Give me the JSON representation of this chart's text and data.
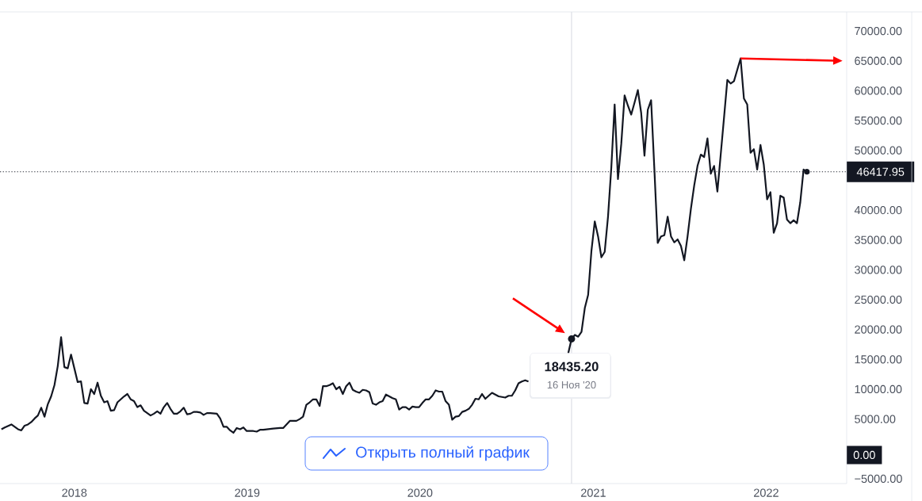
{
  "chart_data": {
    "type": "line",
    "color": "#131722",
    "xlim": [
      "2017-07-28",
      "2022-06-20"
    ],
    "xticks": [
      "2018",
      "2019",
      "2020",
      "2021",
      "2022"
    ],
    "ylim": [
      -5800,
      73200
    ],
    "yticks": [
      {
        "value": -5000,
        "label": "−5000.00"
      },
      {
        "value": 5000,
        "label": "5000.00"
      },
      {
        "value": 10000,
        "label": "10000.00"
      },
      {
        "value": 15000,
        "label": "15000.00"
      },
      {
        "value": 20000,
        "label": "20000.00"
      },
      {
        "value": 25000,
        "label": "25000.00"
      },
      {
        "value": 30000,
        "label": "30000.00"
      },
      {
        "value": 35000,
        "label": "35000.00"
      },
      {
        "value": 40000,
        "label": "40000.00"
      },
      {
        "value": 50000,
        "label": "50000.00"
      },
      {
        "value": 55000,
        "label": "55000.00"
      },
      {
        "value": 60000,
        "label": "60000.00"
      },
      {
        "value": 65000,
        "label": "65000.00"
      },
      {
        "value": 70000,
        "label": "70000.00"
      }
    ],
    "ref_lines": [
      {
        "axis": "x",
        "value": "2020-11-16",
        "label": "16 Ноя '20",
        "color": "#d1d4dc"
      },
      {
        "axis": "y",
        "value": 46417.95,
        "label": "46417.95",
        "color": "#131722",
        "line_style": "dotted"
      }
    ],
    "annotations": [
      {
        "text": "18435.20",
        "x": "2020-11-16",
        "y": 18435.2
      },
      "0.00",
      "Открыть полный график"
    ],
    "x": [
      "2017-07-31",
      "2017-08-07",
      "2017-08-21",
      "2017-09-04",
      "2017-09-11",
      "2017-09-18",
      "2017-09-25",
      "2017-10-02",
      "2017-10-09",
      "2017-10-16",
      "2017-10-23",
      "2017-10-30",
      "2017-11-06",
      "2017-11-13",
      "2017-11-20",
      "2017-11-27",
      "2017-12-04",
      "2017-12-11",
      "2017-12-18",
      "2017-12-25",
      "2018-01-01",
      "2018-01-08",
      "2018-01-15",
      "2018-01-22",
      "2018-01-29",
      "2018-02-05",
      "2018-02-12",
      "2018-02-19",
      "2018-02-26",
      "2018-03-05",
      "2018-03-12",
      "2018-03-19",
      "2018-03-26",
      "2018-04-02",
      "2018-04-09",
      "2018-04-16",
      "2018-04-23",
      "2018-04-30",
      "2018-05-07",
      "2018-05-14",
      "2018-05-21",
      "2018-05-28",
      "2018-06-04",
      "2018-06-11",
      "2018-06-18",
      "2018-06-25",
      "2018-07-02",
      "2018-07-09",
      "2018-07-16",
      "2018-07-23",
      "2018-07-30",
      "2018-08-06",
      "2018-08-13",
      "2018-08-20",
      "2018-08-27",
      "2018-09-03",
      "2018-09-10",
      "2018-09-17",
      "2018-09-24",
      "2018-10-01",
      "2018-10-08",
      "2018-10-15",
      "2018-10-29",
      "2018-11-05",
      "2018-11-12",
      "2018-11-19",
      "2018-11-26",
      "2018-12-03",
      "2018-12-10",
      "2018-12-17",
      "2018-12-24",
      "2018-12-31",
      "2019-01-14",
      "2019-01-21",
      "2019-01-28",
      "2019-02-04",
      "2019-02-25",
      "2019-03-11",
      "2019-03-18",
      "2019-04-01",
      "2019-04-15",
      "2019-04-22",
      "2019-04-29",
      "2019-05-06",
      "2019-05-13",
      "2019-05-20",
      "2019-05-27",
      "2019-06-03",
      "2019-06-10",
      "2019-06-17",
      "2019-06-24",
      "2019-07-01",
      "2019-07-08",
      "2019-07-15",
      "2019-07-22",
      "2019-07-29",
      "2019-08-05",
      "2019-08-12",
      "2019-08-19",
      "2019-08-26",
      "2019-09-02",
      "2019-09-09",
      "2019-09-16",
      "2019-09-23",
      "2019-09-30",
      "2019-10-07",
      "2019-10-14",
      "2019-10-21",
      "2019-10-28",
      "2019-11-04",
      "2019-11-11",
      "2019-11-18",
      "2019-11-25",
      "2019-12-02",
      "2019-12-09",
      "2019-12-16",
      "2019-12-23",
      "2019-12-30",
      "2020-01-06",
      "2020-01-13",
      "2020-01-20",
      "2020-01-27",
      "2020-02-03",
      "2020-02-10",
      "2020-02-17",
      "2020-02-24",
      "2020-03-02",
      "2020-03-09",
      "2020-03-16",
      "2020-03-23",
      "2020-03-30",
      "2020-04-06",
      "2020-04-13",
      "2020-04-20",
      "2020-04-27",
      "2020-05-04",
      "2020-05-11",
      "2020-05-18",
      "2020-05-25",
      "2020-06-01",
      "2020-06-08",
      "2020-06-15",
      "2020-06-22",
      "2020-06-29",
      "2020-07-06",
      "2020-07-13",
      "2020-07-20",
      "2020-07-27",
      "2020-08-03",
      "2020-08-10",
      "2020-08-17",
      "2020-09-28",
      "2020-11-09",
      "2020-11-16",
      "2020-11-23",
      "2020-11-30",
      "2020-12-07",
      "2020-12-14",
      "2020-12-21",
      "2020-12-28",
      "2021-01-04",
      "2021-01-11",
      "2021-01-18",
      "2021-01-25",
      "2021-02-01",
      "2021-02-08",
      "2021-02-15",
      "2021-02-22",
      "2021-03-01",
      "2021-03-08",
      "2021-03-15",
      "2021-03-22",
      "2021-03-29",
      "2021-04-05",
      "2021-04-12",
      "2021-04-19",
      "2021-04-26",
      "2021-05-03",
      "2021-05-10",
      "2021-05-17",
      "2021-05-24",
      "2021-05-31",
      "2021-06-07",
      "2021-06-14",
      "2021-06-21",
      "2021-06-28",
      "2021-07-05",
      "2021-07-12",
      "2021-07-19",
      "2021-07-26",
      "2021-08-02",
      "2021-08-09",
      "2021-08-16",
      "2021-08-23",
      "2021-08-30",
      "2021-09-06",
      "2021-09-13",
      "2021-09-20",
      "2021-09-27",
      "2021-10-04",
      "2021-10-11",
      "2021-10-18",
      "2021-10-25",
      "2021-11-01",
      "2021-11-08",
      "2021-11-15",
      "2021-11-22",
      "2021-11-29",
      "2021-12-06",
      "2021-12-13",
      "2021-12-20",
      "2021-12-27",
      "2022-01-03",
      "2022-01-10",
      "2022-01-17",
      "2022-01-24",
      "2022-01-31",
      "2022-02-07",
      "2022-02-14",
      "2022-02-21",
      "2022-02-28",
      "2022-03-07",
      "2022-03-14",
      "2022-03-21",
      "2022-03-28"
    ],
    "values": [
      3300,
      3600,
      4100,
      3300,
      3100,
      3900,
      4100,
      4500,
      5100,
      5600,
      6900,
      5400,
      7500,
      8800,
      10700,
      13900,
      18700,
      13700,
      13500,
      15800,
      13500,
      11200,
      11300,
      7700,
      7600,
      10000,
      9200,
      11100,
      8900,
      7800,
      8000,
      6400,
      6500,
      7800,
      8300,
      8800,
      9200,
      8300,
      8000,
      7000,
      7300,
      6400,
      6000,
      5600,
      5900,
      6300,
      5900,
      7000,
      7700,
      6700,
      5900,
      5900,
      6300,
      6900,
      5800,
      5900,
      6200,
      6200,
      6100,
      5700,
      6000,
      6000,
      5900,
      5100,
      3700,
      3700,
      3100,
      2700,
      3500,
      3300,
      3600,
      3000,
      3000,
      2900,
      3200,
      3200,
      3400,
      3500,
      3500,
      4700,
      4700,
      5000,
      5400,
      7400,
      7800,
      8300,
      8300,
      7200,
      10500,
      10500,
      10700,
      11000,
      10000,
      10400,
      9200,
      10500,
      11100,
      9900,
      9600,
      9400,
      9900,
      9800,
      9500,
      7600,
      7400,
      7800,
      8000,
      9100,
      8800,
      8500,
      8300,
      6600,
      7000,
      7000,
      6600,
      7100,
      7000,
      7000,
      7700,
      8300,
      8300,
      8900,
      9800,
      9600,
      9600,
      8000,
      7400,
      4900,
      5400,
      5500,
      6200,
      6400,
      6700,
      7400,
      8400,
      8300,
      9200,
      8400,
      8900,
      9400,
      9100,
      8800,
      8700,
      8600,
      8900,
      8900,
      9800,
      11000,
      11300,
      11500,
      11300,
      null,
      16000,
      18435.2,
      19100,
      18800,
      19600,
      23600,
      25800,
      33200,
      38100,
      35600,
      32100,
      33000,
      38900,
      47200,
      57700,
      45200,
      51100,
      59200,
      57500,
      56000,
      58000,
      60100,
      56300,
      49100,
      56800,
      58400,
      46700,
      34500,
      35600,
      35800,
      38900,
      35600,
      34600,
      35100,
      34000,
      31600,
      35600,
      40200,
      44100,
      47400,
      49300,
      48900,
      52000,
      46100,
      47400,
      43100,
      49300,
      55500,
      61800,
      61200,
      61600,
      63500,
      65400,
      58700,
      57700,
      49600,
      50200,
      46800,
      50900,
      47600,
      41800,
      43000,
      36200,
      37800,
      42400,
      42100,
      38400,
      37800,
      38300,
      37800,
      41300,
      46800,
      46417.95
    ]
  }
}
